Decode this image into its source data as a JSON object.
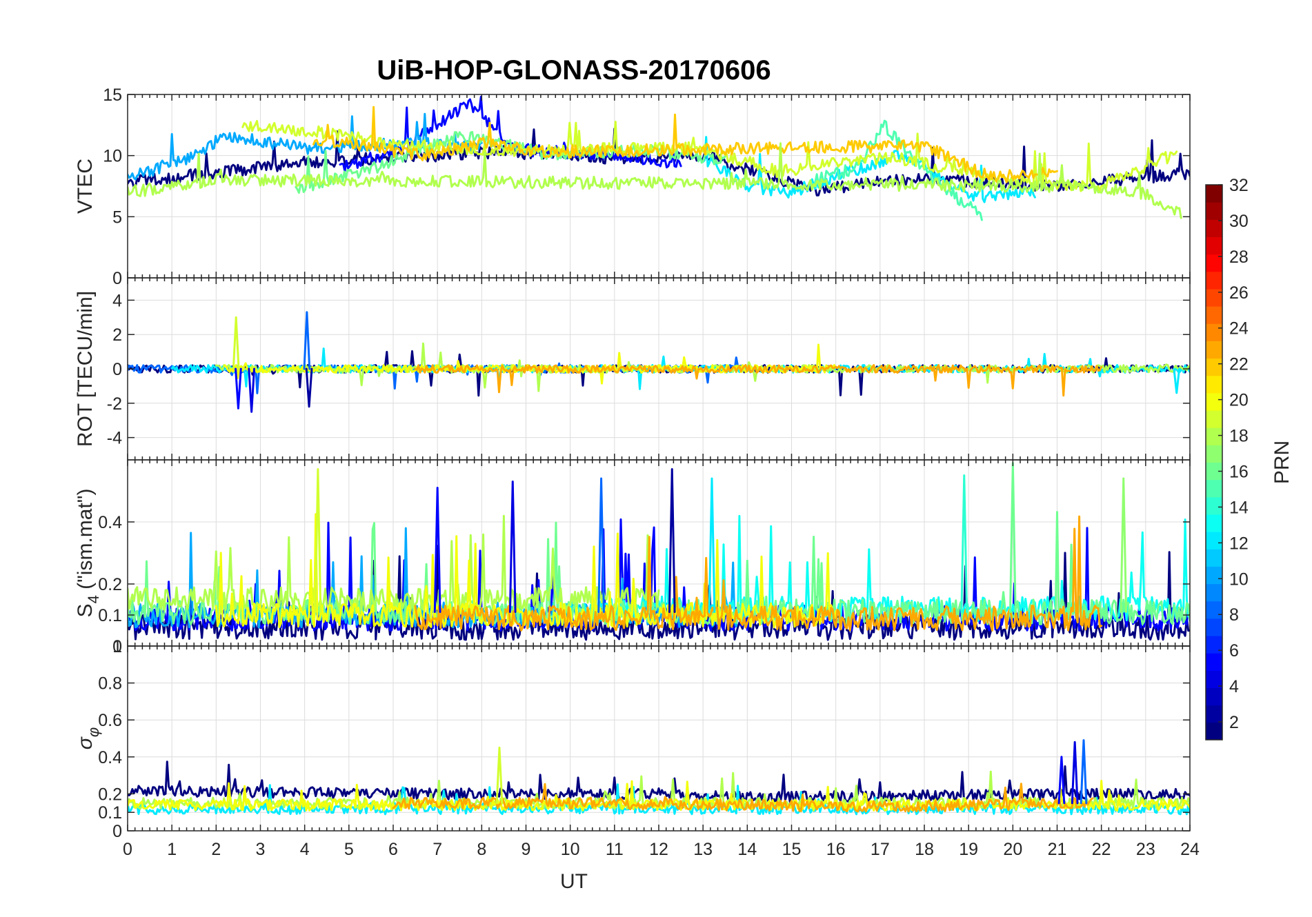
{
  "chart_data": {
    "type": "line",
    "title": "UiB-HOP-GLONASS-20170606",
    "xlabel": "UT",
    "x_ticks": [
      "0",
      "1",
      "2",
      "3",
      "4",
      "5",
      "6",
      "7",
      "8",
      "9",
      "10",
      "11",
      "12",
      "13",
      "14",
      "15",
      "16",
      "17",
      "18",
      "19",
      "20",
      "21",
      "22",
      "23",
      "24"
    ],
    "xlim": [
      0,
      24
    ],
    "grid": true,
    "panels": [
      {
        "id": "vtec",
        "ylabel": "VTEC",
        "ylim": [
          0,
          15
        ],
        "y_ticks": [
          "0",
          "5",
          "10",
          "15"
        ],
        "y_tick_values": [
          0,
          5,
          10,
          15
        ],
        "baseline": 9.2,
        "noise": 0.5,
        "spike_rate": 0.02,
        "spike_size": 3,
        "series_segments": [
          {
            "prn": 1,
            "x": [
              0,
              4.2,
              8.5,
              11,
              13,
              15.5,
              17.8,
              21,
              24
            ],
            "y": [
              7.8,
              9.5,
              10.3,
              9.8,
              10.0,
              7.2,
              8.2,
              7.5,
              8.6
            ]
          },
          {
            "prn": 5,
            "x": [
              4.8,
              6.2,
              7.7,
              8.8,
              10.5,
              12.5
            ],
            "y": [
              9.0,
              10.5,
              14.3,
              10.5,
              10.1,
              9.4
            ]
          },
          {
            "prn": 10,
            "x": [
              0,
              1.5,
              2.2,
              4.0,
              6.5,
              8.0
            ],
            "y": [
              8.1,
              10.0,
              11.6,
              10.6,
              11.0,
              10.6
            ]
          },
          {
            "prn": 12,
            "x": [
              13,
              14,
              15,
              16.5,
              17.5,
              19,
              20.5
            ],
            "y": [
              9.8,
              7.5,
              7.0,
              8.9,
              10.2,
              6.6,
              7.0
            ]
          },
          {
            "prn": 16,
            "x": [
              3.8,
              5.5,
              7.5,
              9.5,
              11.8,
              13.5
            ],
            "y": [
              7.2,
              8.9,
              11.7,
              10.1,
              10.4,
              9.6
            ]
          },
          {
            "prn": 15,
            "x": [
              15.5,
              16.5,
              17.1,
              18.0,
              19.3
            ],
            "y": [
              8.0,
              9.0,
              12.5,
              8.7,
              5.0
            ]
          },
          {
            "prn": 19,
            "x": [
              2.6,
              4.6,
              6.0,
              8.7,
              10.7,
              13.0,
              14.7,
              17.2,
              20.0,
              22.0,
              23.7
            ],
            "y": [
              12.5,
              11.8,
              10.9,
              10.4,
              10.6,
              10.6,
              8.7,
              9.9,
              7.9,
              7.5,
              10.2
            ]
          },
          {
            "prn": 22,
            "x": [
              4.2,
              6.7,
              8.0,
              9.3,
              18.0,
              19.5,
              21.0
            ],
            "y": [
              11.4,
              10.0,
              11.1,
              10.3,
              10.8,
              8.2,
              8.6
            ]
          },
          {
            "prn": 18,
            "x": [
              0,
              1.0,
              2.0,
              21.5,
              23.0,
              23.8
            ],
            "y": [
              7.0,
              7.5,
              8.0,
              7.5,
              6.9,
              5.2
            ]
          }
        ]
      },
      {
        "id": "rot",
        "ylabel": "ROT [TECU/min]",
        "ylim": [
          -5.3,
          5.3
        ],
        "y_ticks": [
          "-4",
          "-2",
          "0",
          "2",
          "4"
        ],
        "y_tick_values": [
          -4,
          -2,
          0,
          2,
          4
        ],
        "baseline": 0,
        "noise": 0.22,
        "spike_rate": 0.02,
        "spike_size": 1.5,
        "series_segments": [
          {
            "prn": 1,
            "x": [
              0,
              24
            ],
            "y": [
              0,
              0
            ]
          },
          {
            "prn": 8,
            "x": [
              0,
              14
            ],
            "y": [
              0,
              0
            ]
          },
          {
            "prn": 12,
            "x": [
              1,
              10,
              18,
              24
            ],
            "y": [
              0,
              0,
              0,
              0
            ]
          },
          {
            "prn": 18,
            "x": [
              2,
              12,
              21,
              24
            ],
            "y": [
              0,
              0,
              0,
              0
            ]
          },
          {
            "prn": 20,
            "x": [
              2.2,
              6,
              13.5,
              16
            ],
            "y": [
              0,
              0,
              0,
              0
            ]
          },
          {
            "prn": 23,
            "x": [
              6.5,
              10,
              16,
              22
            ],
            "y": [
              0,
              0,
              0,
              0
            ]
          }
        ],
        "annotated_spikes": [
          {
            "x": 2.45,
            "y": 3.0
          },
          {
            "x": 2.5,
            "y": -2.3
          },
          {
            "x": 2.8,
            "y": -2.5
          },
          {
            "x": 4.05,
            "y": 3.3
          },
          {
            "x": 4.1,
            "y": -2.2
          },
          {
            "x": 23.7,
            "y": -1.4
          }
        ]
      },
      {
        "id": "s4",
        "ylabel": "S4 (\"ism.mat\")",
        "ylabel_main": "S",
        "ylabel_sub": "4",
        "ylabel_rest": " (\"ism.mat\")",
        "ylim": [
          0,
          0.6
        ],
        "y_ticks": [
          "0",
          "0.1",
          "0.2",
          "0.4"
        ],
        "y_tick_values": [
          0,
          0.1,
          0.2,
          0.4
        ],
        "baseline": 0.11,
        "noise": 0.04,
        "spike_rate": 0.035,
        "spike_size": 0.3,
        "series_segments": [
          {
            "prn": 1,
            "x": [
              0,
              24
            ],
            "y": [
              0.06,
              0.06
            ]
          },
          {
            "prn": 5,
            "x": [
              0,
              24
            ],
            "y": [
              0.09,
              0.09
            ]
          },
          {
            "prn": 10,
            "x": [
              0,
              14
            ],
            "y": [
              0.1,
              0.1
            ]
          },
          {
            "prn": 13,
            "x": [
              10,
              24
            ],
            "y": [
              0.12,
              0.12
            ]
          },
          {
            "prn": 16,
            "x": [
              0,
              24
            ],
            "y": [
              0.11,
              0.11
            ]
          },
          {
            "prn": 18,
            "x": [
              0,
              12
            ],
            "y": [
              0.15,
              0.15
            ]
          },
          {
            "prn": 20,
            "x": [
              2,
              16
            ],
            "y": [
              0.1,
              0.1
            ]
          },
          {
            "prn": 23,
            "x": [
              6.5,
              22
            ],
            "y": [
              0.09,
              0.09
            ]
          }
        ],
        "annotated_spikes": [
          {
            "x": 4.3,
            "y": 0.57
          },
          {
            "x": 7.0,
            "y": 0.51
          },
          {
            "x": 8.7,
            "y": 0.53
          },
          {
            "x": 10.7,
            "y": 0.54
          },
          {
            "x": 12.3,
            "y": 0.57
          },
          {
            "x": 13.2,
            "y": 0.54
          },
          {
            "x": 18.9,
            "y": 0.55
          },
          {
            "x": 20.0,
            "y": 0.59
          },
          {
            "x": 22.5,
            "y": 0.54
          }
        ]
      },
      {
        "id": "sigphi",
        "ylabel": "σφ",
        "ylabel_main": "σ",
        "ylabel_sub": "φ",
        "ylim": [
          0,
          1
        ],
        "y_ticks": [
          "0",
          "0.1",
          "0.2",
          "0.4",
          "0.6",
          "0.8",
          "1"
        ],
        "y_tick_values": [
          0,
          0.1,
          0.2,
          0.4,
          0.6,
          0.8,
          1
        ],
        "baseline": 0.15,
        "noise": 0.03,
        "spike_rate": 0.03,
        "spike_size": 0.15,
        "series_segments": [
          {
            "prn": 1,
            "x": [
              0,
              6,
              12,
              14,
              22,
              24
            ],
            "y": [
              0.22,
              0.2,
              0.2,
              0.18,
              0.2,
              0.2
            ]
          },
          {
            "prn": 12,
            "x": [
              0,
              24
            ],
            "y": [
              0.12,
              0.12
            ]
          },
          {
            "prn": 18,
            "x": [
              0,
              24
            ],
            "y": [
              0.15,
              0.15
            ]
          },
          {
            "prn": 20,
            "x": [
              0,
              24
            ],
            "y": [
              0.14,
              0.14
            ]
          },
          {
            "prn": 23,
            "x": [
              6,
              10,
              17.5,
              21.8
            ],
            "y": [
              0.15,
              0.15,
              0.13,
              0.15
            ]
          }
        ],
        "annotated_spikes": [
          {
            "x": 8.4,
            "y": 0.45
          },
          {
            "x": 21.1,
            "y": 0.4
          },
          {
            "x": 21.4,
            "y": 0.48
          },
          {
            "x": 21.6,
            "y": 0.49
          }
        ]
      }
    ],
    "colorbar": {
      "label": "PRN",
      "colormap": "jet",
      "range": [
        1,
        32
      ],
      "ticks": [
        "2",
        "4",
        "6",
        "8",
        "10",
        "12",
        "14",
        "16",
        "18",
        "20",
        "22",
        "24",
        "26",
        "28",
        "30",
        "32"
      ],
      "tick_values": [
        2,
        4,
        6,
        8,
        10,
        12,
        14,
        16,
        18,
        20,
        22,
        24,
        26,
        28,
        30,
        32
      ]
    }
  }
}
